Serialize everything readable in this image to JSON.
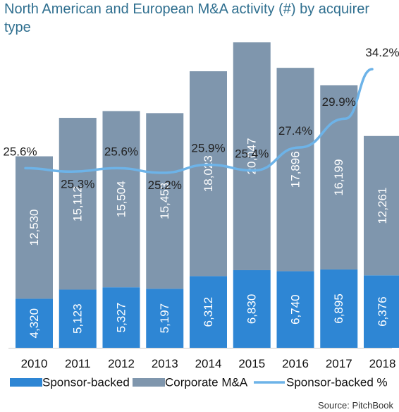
{
  "title": "North American and European M&A activity (#) by acquirer type",
  "source": "Source: PitchBook",
  "colors": {
    "sponsor": "#2e86d4",
    "corporate": "#7f96ad",
    "line": "#6db3e8",
    "title": "#2f6f8f"
  },
  "chart_data": {
    "type": "bar",
    "stacked": true,
    "categories": [
      "2010",
      "2011",
      "2012",
      "2013",
      "2014",
      "2015",
      "2016",
      "2017",
      "2018"
    ],
    "series": [
      {
        "name": "Sponsor-backed",
        "values": [
          4320,
          5123,
          5327,
          5197,
          6312,
          6830,
          6740,
          6895,
          6376
        ],
        "labels": [
          "4,320",
          "5,123",
          "5,327",
          "5,197",
          "6,312",
          "6,830",
          "6,740",
          "6,895",
          "6,376"
        ]
      },
      {
        "name": "Corporate M&A",
        "values": [
          12530,
          15112,
          15504,
          15453,
          18023,
          20047,
          17896,
          16199,
          12261
        ],
        "labels": [
          "12,530",
          "15,112",
          "15,504",
          "15,453",
          "18,023",
          "20,047",
          "17,896",
          "16,199",
          "12,261"
        ]
      },
      {
        "name": "Sponsor-backed %",
        "type": "line",
        "values": [
          25.6,
          25.3,
          25.6,
          25.2,
          25.9,
          25.4,
          27.4,
          29.9,
          34.2
        ],
        "labels": [
          "25.6%",
          "25.3%",
          "25.6%",
          "25.2%",
          "25.9%",
          "25.4%",
          "27.4%",
          "29.9%",
          "34.2%"
        ]
      }
    ],
    "ylim_bars": [
      0,
      27500
    ],
    "ylim_line": [
      10,
      35
    ],
    "legend": "bottom",
    "grid": false
  }
}
